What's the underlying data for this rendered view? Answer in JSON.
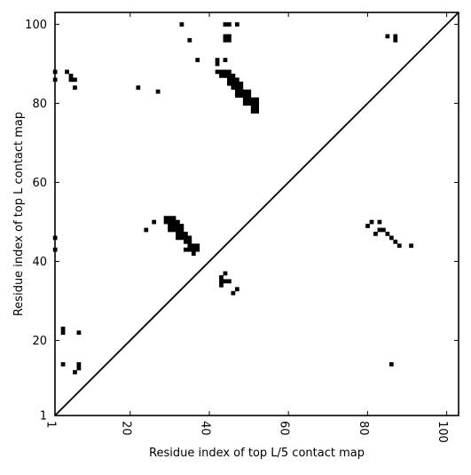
{
  "chart_data": {
    "type": "heatmap",
    "title": "",
    "xlabel": "Residue index of top L/5 contact map",
    "ylabel": "Residue index of top L contact map",
    "xlim": [
      1,
      103
    ],
    "ylim": [
      1,
      103
    ],
    "x_ticks": [
      "1",
      "20",
      "40",
      "60",
      "80",
      "100"
    ],
    "y_ticks": [
      "1",
      "20",
      "40",
      "60",
      "80",
      "100"
    ],
    "x_tick_values": [
      1,
      20,
      40,
      60,
      80,
      100
    ],
    "y_tick_values": [
      1,
      20,
      40,
      60,
      80,
      100
    ],
    "diagonal": true,
    "grid": false,
    "cell_color": "#000000",
    "upper_triangle_contacts": [
      [
        1,
        88
      ],
      [
        1,
        86
      ],
      [
        1,
        46
      ],
      [
        1,
        43
      ],
      [
        4,
        88
      ],
      [
        5,
        87
      ],
      [
        5,
        86
      ],
      [
        6,
        86
      ],
      [
        6,
        84
      ],
      [
        3,
        23
      ],
      [
        3,
        22
      ],
      [
        7,
        22
      ],
      [
        3,
        14
      ],
      [
        7,
        14
      ],
      [
        7,
        13
      ],
      [
        6,
        12
      ],
      [
        22,
        84
      ],
      [
        27,
        83
      ],
      [
        24,
        48
      ],
      [
        26,
        50
      ],
      [
        33,
        100
      ],
      [
        35,
        96
      ],
      [
        37,
        91
      ],
      [
        44,
        100
      ],
      [
        45,
        100
      ],
      [
        47,
        100
      ],
      [
        44,
        97
      ],
      [
        45,
        97
      ],
      [
        44,
        96
      ],
      [
        45,
        96
      ],
      [
        44,
        91
      ],
      [
        42,
        91
      ],
      [
        42,
        90
      ],
      [
        42,
        88
      ],
      [
        43,
        88
      ],
      [
        44,
        88
      ],
      [
        45,
        88
      ],
      [
        43,
        87
      ],
      [
        44,
        87
      ],
      [
        45,
        87
      ],
      [
        46,
        87
      ],
      [
        45,
        86
      ],
      [
        46,
        86
      ],
      [
        47,
        86
      ],
      [
        45,
        85
      ],
      [
        46,
        85
      ],
      [
        47,
        85
      ],
      [
        48,
        85
      ],
      [
        46,
        84
      ],
      [
        47,
        84
      ],
      [
        48,
        84
      ],
      [
        47,
        83
      ],
      [
        48,
        83
      ],
      [
        49,
        83
      ],
      [
        50,
        83
      ],
      [
        47,
        82
      ],
      [
        48,
        82
      ],
      [
        49,
        82
      ],
      [
        50,
        82
      ],
      [
        49,
        81
      ],
      [
        50,
        81
      ],
      [
        51,
        81
      ],
      [
        52,
        81
      ],
      [
        49,
        80
      ],
      [
        50,
        80
      ],
      [
        51,
        80
      ],
      [
        52,
        80
      ],
      [
        51,
        79
      ],
      [
        52,
        79
      ],
      [
        51,
        78
      ],
      [
        52,
        78
      ],
      [
        29,
        51
      ],
      [
        30,
        51
      ],
      [
        31,
        51
      ],
      [
        29,
        50
      ],
      [
        30,
        50
      ],
      [
        31,
        50
      ],
      [
        32,
        50
      ],
      [
        30,
        49
      ],
      [
        31,
        49
      ],
      [
        32,
        49
      ],
      [
        33,
        49
      ],
      [
        30,
        48
      ],
      [
        31,
        48
      ],
      [
        32,
        48
      ],
      [
        33,
        48
      ],
      [
        32,
        47
      ],
      [
        33,
        47
      ],
      [
        34,
        47
      ],
      [
        32,
        46
      ],
      [
        33,
        46
      ],
      [
        34,
        46
      ],
      [
        35,
        46
      ],
      [
        34,
        45
      ],
      [
        35,
        45
      ],
      [
        35,
        44
      ],
      [
        36,
        44
      ],
      [
        37,
        44
      ],
      [
        34,
        43
      ],
      [
        35,
        43
      ],
      [
        36,
        43
      ],
      [
        37,
        43
      ],
      [
        36,
        42
      ],
      [
        43,
        36
      ],
      [
        43,
        35
      ],
      [
        44,
        35
      ],
      [
        45,
        35
      ],
      [
        43,
        34
      ],
      [
        44,
        37
      ],
      [
        46,
        32
      ],
      [
        47,
        33
      ],
      [
        85,
        97
      ],
      [
        87,
        97
      ],
      [
        87,
        96
      ]
    ],
    "lower_triangle_contacts": [
      [
        80,
        49
      ],
      [
        81,
        50
      ],
      [
        83,
        50
      ],
      [
        82,
        47
      ],
      [
        83,
        48
      ],
      [
        84,
        48
      ],
      [
        85,
        47
      ],
      [
        86,
        46
      ],
      [
        87,
        45
      ],
      [
        88,
        44
      ],
      [
        91,
        44
      ],
      [
        86,
        14
      ]
    ]
  }
}
